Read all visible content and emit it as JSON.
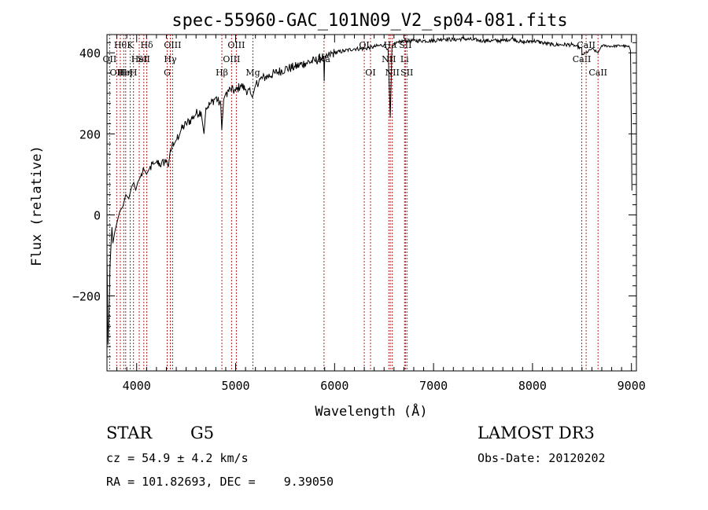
{
  "chart_data": {
    "type": "line",
    "title": "spec-55960-GAC_101N09_V2_sp04-081.fits",
    "xlabel": "Wavelength (Å)",
    "ylabel": "Flux (relative)",
    "xlim": [
      3700,
      9050
    ],
    "ylim": [
      -385,
      445
    ],
    "x_ticks": [
      4000,
      5000,
      6000,
      7000,
      8000,
      9000
    ],
    "x_tick_labels": [
      "4000",
      "5000",
      "6000",
      "7000",
      "8000",
      "9000"
    ],
    "y_ticks": [
      -200,
      0,
      200,
      400
    ],
    "y_tick_labels": [
      "−200",
      "0",
      "200",
      "400"
    ],
    "grid": false,
    "line_color": "#000000",
    "marker_color": "#b22222",
    "series": [
      {
        "name": "flux",
        "x": [
          3700,
          3710,
          3720,
          3730,
          3740,
          3750,
          3760,
          3780,
          3800,
          3830,
          3860,
          3890,
          3920,
          3950,
          3970,
          3990,
          4010,
          4040,
          4080,
          4100,
          4130,
          4170,
          4200,
          4250,
          4300,
          4320,
          4340,
          4380,
          4400,
          4450,
          4500,
          4550,
          4600,
          4650,
          4680,
          4700,
          4750,
          4800,
          4850,
          4860,
          4880,
          4900,
          4950,
          5000,
          5050,
          5100,
          5150,
          5170,
          5200,
          5250,
          5300,
          5400,
          5500,
          5600,
          5700,
          5800,
          5890,
          5895,
          5900,
          5950,
          6000,
          6100,
          6200,
          6300,
          6400,
          6500,
          6540,
          6563,
          6580,
          6600,
          6650,
          6700,
          6800,
          6900,
          7000,
          7100,
          7200,
          7300,
          7400,
          7500,
          7600,
          7700,
          7800,
          7900,
          8000,
          8100,
          8200,
          8300,
          8400,
          8498,
          8500,
          8542,
          8600,
          8662,
          8700,
          8800,
          8900,
          8980,
          8990,
          9000,
          9005
        ],
        "y": [
          -100,
          -320,
          -250,
          -130,
          -80,
          -30,
          -70,
          -40,
          -20,
          10,
          20,
          50,
          40,
          70,
          80,
          60,
          80,
          95,
          110,
          100,
          115,
          125,
          130,
          125,
          135,
          118,
          160,
          175,
          185,
          210,
          225,
          235,
          250,
          255,
          200,
          265,
          275,
          290,
          270,
          210,
          285,
          300,
          310,
          305,
          320,
          310,
          300,
          290,
          320,
          335,
          340,
          350,
          360,
          365,
          375,
          380,
          390,
          330,
          380,
          395,
          400,
          405,
          410,
          410,
          415,
          420,
          410,
          240,
          415,
          420,
          425,
          430,
          430,
          430,
          430,
          435,
          432,
          435,
          432,
          430,
          430,
          430,
          435,
          425,
          430,
          425,
          420,
          420,
          420,
          410,
          395,
          400,
          410,
          400,
          418,
          416,
          418,
          414,
          405,
          200,
          60
        ]
      }
    ],
    "line_markers": [
      {
        "w": 3727,
        "label": "OII",
        "row": 2
      },
      {
        "w": 3798,
        "label": "OII",
        "row": 3
      },
      {
        "w": 3835,
        "label": "Hθ",
        "row": 1
      },
      {
        "w": 3869,
        "label": "He",
        "row": 3
      },
      {
        "w": 3889,
        "label": "Hη",
        "row": 3
      },
      {
        "w": 3934,
        "label": "K",
        "row": 1
      },
      {
        "w": 3968,
        "label": "H",
        "row": 3
      },
      {
        "w": 4026,
        "label": "HeI",
        "row": 2
      },
      {
        "w": 4072,
        "label": "SII",
        "row": 2
      },
      {
        "w": 4102,
        "label": "Hδ",
        "row": 1
      },
      {
        "w": 4308,
        "label": "G",
        "row": 3
      },
      {
        "w": 4340,
        "label": "Hγ",
        "row": 2
      },
      {
        "w": 4363,
        "label": "OIII",
        "row": 1
      },
      {
        "w": 4861,
        "label": "Hβ",
        "row": 3
      },
      {
        "w": 4959,
        "label": "OIII",
        "row": 2
      },
      {
        "w": 5007,
        "label": "OIII",
        "row": 1
      },
      {
        "w": 5175,
        "label": "Mg",
        "row": 3
      },
      {
        "w": 5893,
        "label": "Na",
        "row": 2
      },
      {
        "w": 6300,
        "label": "OI",
        "row": 1
      },
      {
        "w": 6363,
        "label": "OI",
        "row": 3
      },
      {
        "w": 6548,
        "label": "NII",
        "row": 2
      },
      {
        "w": 6563,
        "label": "Hα",
        "row": 1
      },
      {
        "w": 6583,
        "label": "NII",
        "row": 3
      },
      {
        "w": 6707,
        "label": "Li",
        "row": 2
      },
      {
        "w": 6716,
        "label": "SII",
        "row": 1
      },
      {
        "w": 6731,
        "label": "SII",
        "row": 3
      },
      {
        "w": 8498,
        "label": "CaII",
        "row": 2
      },
      {
        "w": 8542,
        "label": "CaII",
        "row": 1
      },
      {
        "w": 8662,
        "label": "CaII",
        "row": 3
      }
    ]
  },
  "info": {
    "object_class": "STAR",
    "subclass": "G5",
    "survey": "LAMOST DR3",
    "cz": "cz = 54.9 ± 4.2 km/s",
    "obs_date": "Obs-Date: 20120202",
    "coords": "RA = 101.82693, DEC =    9.39050"
  }
}
